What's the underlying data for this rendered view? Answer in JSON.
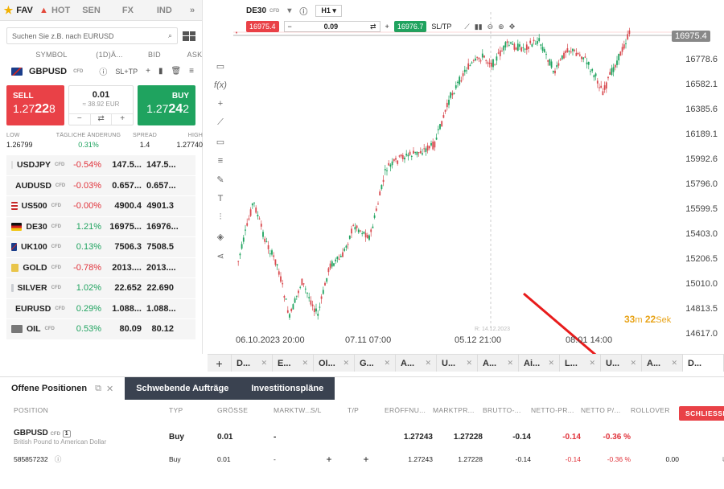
{
  "tabs": [
    {
      "label": "FAV"
    },
    {
      "label": "HOT"
    },
    {
      "label": "SEN"
    },
    {
      "label": "FX"
    },
    {
      "label": "IND"
    }
  ],
  "search": {
    "placeholder": "Suchen Sie z.B. nach EURUSD"
  },
  "columns": {
    "symbol": "SYMBOL",
    "change": "(1D)Ä...",
    "bid": "BID",
    "ask": "ASK"
  },
  "selected": {
    "symbol": "GBPUSD",
    "type": "CFD",
    "sltp": "SL+TP",
    "sell_label": "SELL",
    "sell_price_a": "1.27",
    "sell_price_b": "22",
    "sell_price_c": "8",
    "buy_label": "BUY",
    "buy_price_a": "1.27",
    "buy_price_b": "24",
    "buy_price_c": "2",
    "volume": "0.01",
    "volume_eur": "≈ 38.92 EUR",
    "stats_heads": {
      "low": "LOW",
      "change": "TÄGLICHE ÄNDERUNG",
      "spread": "SPREAD",
      "high": "HIGH"
    },
    "stats": {
      "low": "1.26799",
      "change": "0.31%",
      "spread": "1.4",
      "high": "1.27740"
    }
  },
  "watchlist": [
    {
      "symbol": "USDJPY",
      "change": "-0.54%",
      "bid": "147.5...",
      "ask": "147.5..."
    },
    {
      "symbol": "AUDUSD",
      "change": "-0.03%",
      "bid": "0.657...",
      "ask": "0.657..."
    },
    {
      "symbol": "US500",
      "change": "-0.00%",
      "bid": "4900.4",
      "ask": "4901.3"
    },
    {
      "symbol": "DE30",
      "change": "1.21%",
      "bid": "16975...",
      "ask": "16976..."
    },
    {
      "symbol": "UK100",
      "change": "0.13%",
      "bid": "7506.3",
      "ask": "7508.5"
    },
    {
      "symbol": "GOLD",
      "change": "-0.78%",
      "bid": "2013....",
      "ask": "2013...."
    },
    {
      "symbol": "SILVER",
      "change": "1.02%",
      "bid": "22.652",
      "ask": "22.690"
    },
    {
      "symbol": "EURUSD",
      "change": "0.29%",
      "bid": "1.088...",
      "ask": "1.088..."
    },
    {
      "symbol": "OIL",
      "change": "0.53%",
      "bid": "80.09",
      "ask": "80.12"
    }
  ],
  "chart": {
    "symbol": "DE30",
    "type": "CFD",
    "timeframe": "H1",
    "sell_chip": "16975.4",
    "buy_chip": "16976.7",
    "volume": "0.09",
    "sltp": "SL/TP",
    "last_price": "16975.4",
    "y_ticks": [
      "16778.6",
      "16582.1",
      "16385.6",
      "16189.1",
      "15992.6",
      "15796.0",
      "15599.5",
      "15403.0",
      "15206.5",
      "15010.0",
      "14813.5",
      "14617.0"
    ],
    "x_ticks": [
      "06.10.2023 20:00",
      "07.11 07:00",
      "05.12 21:00",
      "08.01 14:00"
    ],
    "crosshair_label": "R: 14.12.2023",
    "timer_min": "33",
    "timer_min_unit": "m",
    "timer_sec": "22",
    "timer_sec_unit": "Sek"
  },
  "chart_tabs": [
    "D...",
    "E...",
    "OI...",
    "G...",
    "A...",
    "U...",
    "A...",
    "Ai...",
    "L...",
    "U...",
    "A...",
    "D..."
  ],
  "bottom": {
    "tab_positions": "Offene Positionen",
    "tab_pending": "Schwebende Aufträge",
    "tab_plans": "Investitionspläne",
    "headers": [
      "POSITION",
      "TYP",
      "GRÖSSE",
      "MARKTW...",
      "S/L",
      "T/P",
      "ERÖFFNU...",
      "MARKTPR...",
      "BRUTTO-...",
      "NETTO-PR...",
      "NETTO P/...",
      "ROLLOVER"
    ],
    "close_label": "SCHLIESSEN...",
    "row1": {
      "position": "GBPUSD",
      "type_tag": "CFD",
      "count": "1",
      "desc": "British Pound to American Dollar",
      "typ": "Buy",
      "size": "0.01",
      "market": "-",
      "open": "1.27243",
      "price": "1.27228",
      "gross": "-0.14",
      "net": "-0.14",
      "netpct": "-0.36 %"
    },
    "row2": {
      "id": "585857232",
      "typ": "Buy",
      "size": "0.01",
      "market": "-",
      "open": "1.27243",
      "price": "1.27228",
      "gross": "-0.14",
      "net": "-0.14",
      "netpct": "-0.36 %",
      "rollover": "0.00"
    }
  },
  "colors": {
    "sell": "#e94147",
    "buy": "#1fa35f",
    "candle_up": "#1fa35f",
    "candle_down": "#d84a4f"
  }
}
